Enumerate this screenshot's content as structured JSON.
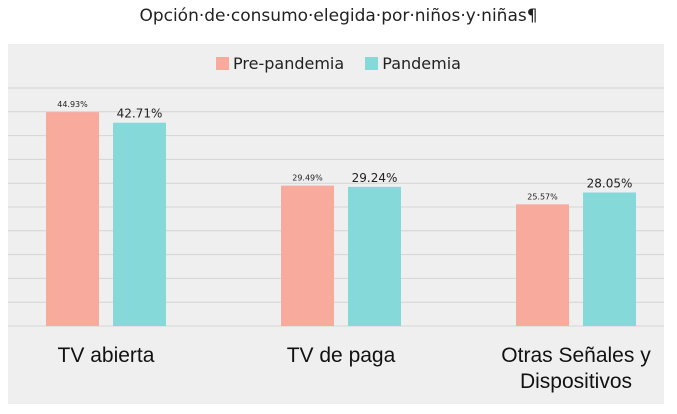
{
  "chart_data": {
    "type": "bar",
    "title": "Opción·de·consumo·elegida·por·niños·y·niñas¶",
    "categories": [
      "TV abierta",
      "TV de paga",
      "Otras Señales y Dispositivos"
    ],
    "category_lines": [
      [
        "TV abierta"
      ],
      [
        "TV de paga"
      ],
      [
        "Otras Señales y",
        "Dispositivos"
      ]
    ],
    "series": [
      {
        "name": "Pre-pandemia",
        "values": [
          44.93,
          29.49,
          25.57
        ],
        "labels": [
          "44.93%",
          "29.49%",
          "25.57%"
        ],
        "color": "#f8aa9d"
      },
      {
        "name": "Pandemia",
        "values": [
          42.71,
          29.24,
          28.05
        ],
        "labels": [
          "42.71%",
          "29.24%",
          "28.05%"
        ],
        "color": "#86d9d9"
      }
    ],
    "ylim": [
      0,
      50
    ],
    "grid": true,
    "legend_position": "top"
  }
}
